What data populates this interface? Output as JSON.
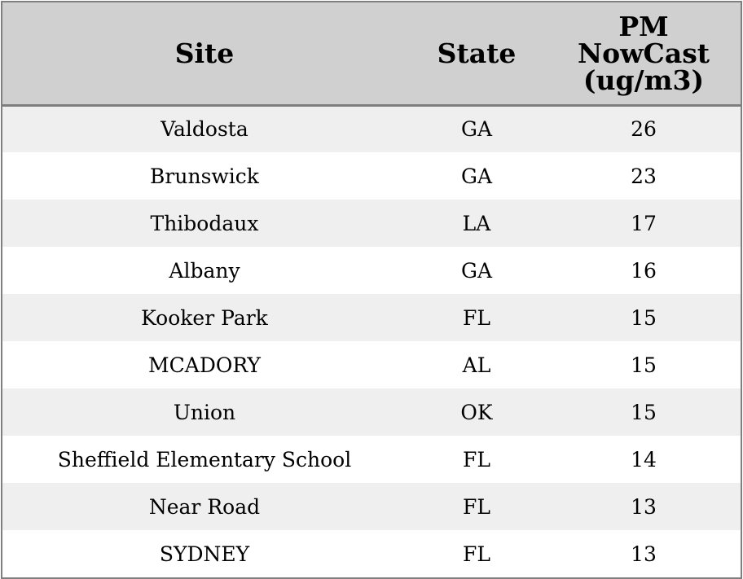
{
  "chart_data": {
    "type": "table",
    "columns": [
      "Site",
      "State",
      "PM NowCast (ug/m3)"
    ],
    "header_lines": {
      "site": "Site",
      "state": "State",
      "pm": [
        "PM",
        "NowCast",
        "(ug/m3)"
      ]
    },
    "rows": [
      [
        "Valdosta",
        "GA",
        "26"
      ],
      [
        "Brunswick",
        "GA",
        "23"
      ],
      [
        "Thibodaux",
        "LA",
        "17"
      ],
      [
        "Albany",
        "GA",
        "16"
      ],
      [
        "Kooker Park",
        "FL",
        "15"
      ],
      [
        "MCADORY",
        "AL",
        "15"
      ],
      [
        "Union",
        "OK",
        "15"
      ],
      [
        "Sheffield Elementary School",
        "FL",
        "14"
      ],
      [
        "Near Road",
        "FL",
        "13"
      ],
      [
        "SYDNEY",
        "FL",
        "13"
      ]
    ]
  },
  "colors": {
    "header_bg": "#d0d0d0",
    "row_alt_bg": "#efefef",
    "row_bg": "#ffffff",
    "border": "#7f7f7f"
  }
}
